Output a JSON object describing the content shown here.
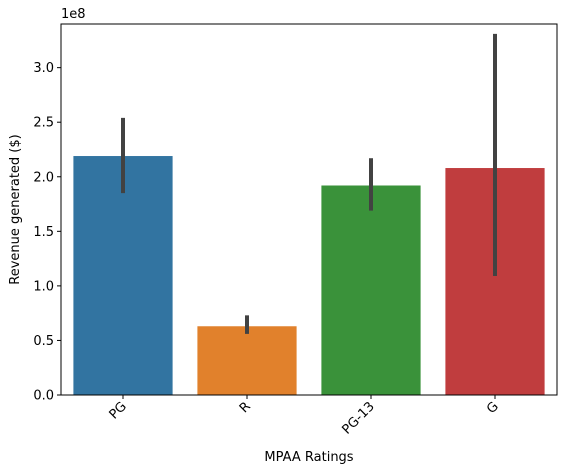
{
  "chart_data": {
    "type": "bar",
    "title": "",
    "xlabel": "MPAA Ratings",
    "ylabel": "Revenue generated ($)",
    "y_offset_text": "1e8",
    "y_scale_note": "values in units of 1e8",
    "ylim": [
      0,
      3.4
    ],
    "yticks": [
      0.0,
      0.5,
      1.0,
      1.5,
      2.0,
      2.5,
      3.0
    ],
    "ytick_labels": [
      "0.0",
      "0.5",
      "1.0",
      "1.5",
      "2.0",
      "2.5",
      "3.0"
    ],
    "categories": [
      "PG",
      "R",
      "PG-13",
      "G"
    ],
    "values": [
      2.19,
      0.63,
      1.92,
      2.08
    ],
    "error_low": [
      1.85,
      0.56,
      1.69,
      1.09
    ],
    "error_high": [
      2.54,
      0.73,
      2.17,
      3.31
    ],
    "colors": [
      "#3274a1",
      "#e1812c",
      "#3a923a",
      "#c03d3e"
    ],
    "error_color": "#424242",
    "grid": false,
    "legend": "none"
  }
}
